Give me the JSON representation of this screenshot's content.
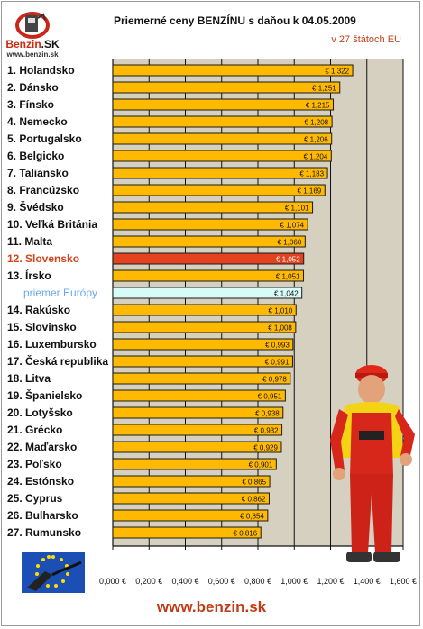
{
  "logo": {
    "brand_a": "Benzin",
    "brand_b": ".SK",
    "url": "www.benzin.sk"
  },
  "header": {
    "title": "Priemerné ceny BENZÍNU s daňou k 04.05.2009",
    "subtitle": "v 27 štátoch EU"
  },
  "footer": {
    "url": "www.benzin.sk"
  },
  "colors": {
    "bar": "#ffb900",
    "highlight": "#e2421d",
    "average": "#d9fbf8",
    "plot_bg": "#d5d0bf"
  },
  "chart_data": {
    "type": "bar",
    "orientation": "horizontal",
    "categories": [
      "1. Holandsko",
      "2. Dánsko",
      "3. Fínsko",
      "4. Nemecko",
      "5. Portugalsko",
      "6. Belgicko",
      "7. Taliansko",
      "8. Francúzsko",
      "9. Švédsko",
      "10. Veľká Británia",
      "11. Malta",
      "12. Slovensko",
      "13. Írsko",
      "priemer Európy",
      "14. Rakúsko",
      "15. Slovinsko",
      "16. Luxembursko",
      "17. Česká republika",
      "18. Litva",
      "19. Španielsko",
      "20. Lotyšsko",
      "21. Grécko",
      "22. Maďarsko",
      "23. Poľsko",
      "24. Estónsko",
      "25. Cyprus",
      "26. Bulharsko",
      "27. Rumunsko"
    ],
    "values": [
      1.322,
      1.251,
      1.215,
      1.208,
      1.206,
      1.204,
      1.183,
      1.169,
      1.101,
      1.074,
      1.06,
      1.052,
      1.051,
      1.042,
      1.01,
      1.008,
      0.993,
      0.991,
      0.978,
      0.951,
      0.938,
      0.932,
      0.929,
      0.901,
      0.865,
      0.862,
      0.854,
      0.816
    ],
    "data_labels": [
      "€ 1,322",
      "€ 1,251",
      "€ 1,215",
      "€ 1,208",
      "€ 1,206",
      "€ 1,204",
      "€ 1,183",
      "€ 1,169",
      "€ 1,101",
      "€ 1,074",
      "€ 1,060",
      "€ 1,052",
      "€ 1,051",
      "€ 1,042",
      "€ 1,010",
      "€ 1,008",
      "€ 0,993",
      "€ 0,991",
      "€ 0,978",
      "€ 0,951",
      "€ 0,938",
      "€ 0,932",
      "€ 0,929",
      "€ 0,901",
      "€ 0,865",
      "€ 0,862",
      "€ 0,854",
      "€ 0,816"
    ],
    "highlight": "12. Slovensko",
    "average": "priemer Európy",
    "xlim": [
      0,
      1.6
    ],
    "xticks": [
      "0,000 €",
      "0,200 €",
      "0,400 €",
      "0,600 €",
      "0,800 €",
      "1,000 €",
      "1,200 €",
      "1,400 €",
      "1,600 €"
    ],
    "grid": true
  }
}
